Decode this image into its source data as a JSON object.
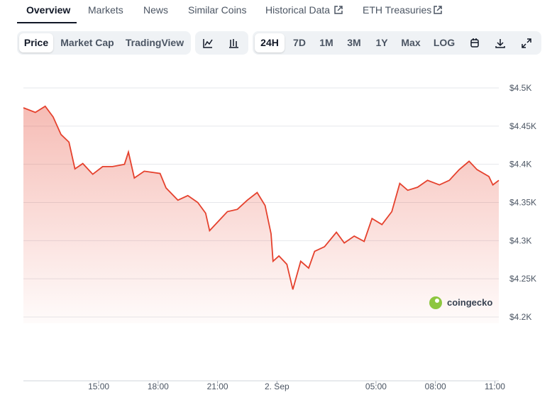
{
  "tabs": [
    "Overview",
    "Markets",
    "News",
    "Similar Coins",
    "Historical Data",
    "ETH Treasuries"
  ],
  "toolbar": {
    "views": [
      "Price",
      "Market Cap",
      "TradingView"
    ],
    "ranges": [
      "24H",
      "7D",
      "1M",
      "3M",
      "1Y",
      "Max",
      "LOG"
    ]
  },
  "watermark": "coingecko",
  "chart_data": {
    "type": "line",
    "color": "#e5412d",
    "grid": true,
    "x": [
      11.2,
      11.8,
      12.3,
      12.7,
      13.1,
      13.5,
      13.8,
      14.2,
      14.7,
      15.2,
      15.7,
      16.3,
      16.5,
      16.8,
      17.3,
      18.1,
      18.4,
      19.0,
      19.5,
      20.0,
      20.4,
      20.6,
      21.1,
      21.5,
      22.0,
      22.5,
      23.0,
      23.4,
      23.7,
      23.8,
      24.1,
      24.5,
      24.8,
      25.2,
      25.6,
      25.9,
      26.4,
      27.0,
      27.4,
      27.9,
      28.4,
      28.8,
      29.3,
      29.8,
      30.2,
      30.6,
      31.1,
      31.6,
      32.2,
      32.7,
      33.2,
      33.7,
      34.1,
      34.7,
      34.9,
      35.2
    ],
    "values": [
      4474,
      4468,
      4476,
      4462,
      4439,
      4429,
      4394,
      4401,
      4387,
      4397,
      4397,
      4400,
      4416,
      4382,
      4391,
      4388,
      4369,
      4353,
      4359,
      4350,
      4336,
      4313,
      4327,
      4338,
      4341,
      4353,
      4363,
      4346,
      4309,
      4273,
      4280,
      4269,
      4236,
      4273,
      4264,
      4286,
      4292,
      4311,
      4297,
      4306,
      4299,
      4329,
      4321,
      4338,
      4375,
      4366,
      4370,
      4379,
      4373,
      4379,
      4393,
      4404,
      4393,
      4384,
      4373,
      4379
    ],
    "xlim": [
      11.2,
      35.2
    ],
    "xticks": [
      {
        "value": 15,
        "label": "15:00"
      },
      {
        "value": 18,
        "label": "18:00"
      },
      {
        "value": 21,
        "label": "21:00"
      },
      {
        "value": 24,
        "label": "2. Sep"
      },
      {
        "value": 29,
        "label": "05:00"
      },
      {
        "value": 32,
        "label": "08:00"
      },
      {
        "value": 35,
        "label": "11:00"
      }
    ],
    "ylim": [
      4200,
      4500
    ],
    "yticks": [
      {
        "value": 4200,
        "label": "$4.2K"
      },
      {
        "value": 4250,
        "label": "$4.25K"
      },
      {
        "value": 4300,
        "label": "$4.3K"
      },
      {
        "value": 4350,
        "label": "$4.35K"
      },
      {
        "value": 4400,
        "label": "$4.4K"
      },
      {
        "value": 4450,
        "label": "$4.45K"
      },
      {
        "value": 4500,
        "label": "$4.5K"
      }
    ]
  }
}
